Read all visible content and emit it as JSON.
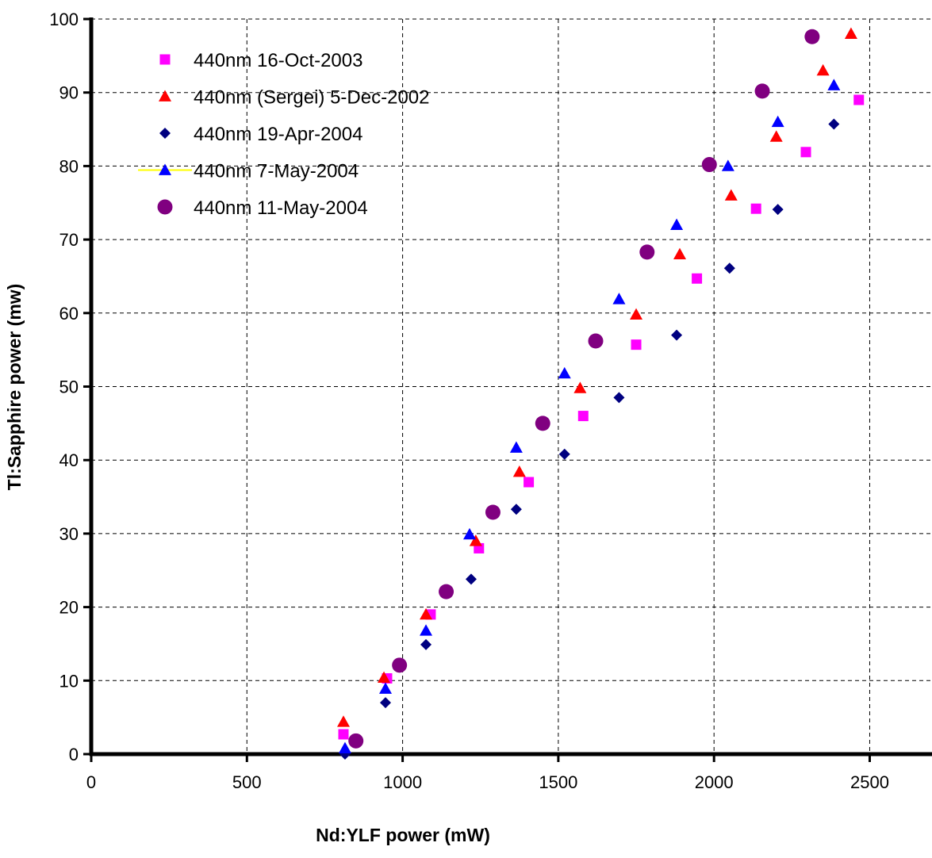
{
  "chart_data": {
    "type": "scatter",
    "title": "",
    "xlabel": "Nd:YLF power (mW)",
    "ylabel": "Tl:Sapphire power (mw)",
    "xlim": [
      0,
      2700
    ],
    "ylim": [
      0,
      100
    ],
    "x_ticks": [
      0,
      500,
      1000,
      1500,
      2000,
      2500
    ],
    "y_ticks": [
      0,
      10,
      20,
      30,
      40,
      50,
      60,
      70,
      80,
      90,
      100
    ],
    "grid": true,
    "legend_position": "top-left",
    "series": [
      {
        "name": "440nm 16-Oct-2003",
        "marker": "square",
        "color": "#ff00ff",
        "points": [
          [
            810,
            2.7
          ],
          [
            950,
            10.3
          ],
          [
            1090,
            19.0
          ],
          [
            1245,
            28.0
          ],
          [
            1405,
            37.0
          ],
          [
            1580,
            46.0
          ],
          [
            1750,
            55.7
          ],
          [
            1945,
            64.7
          ],
          [
            2135,
            74.2
          ],
          [
            2295,
            81.9
          ],
          [
            2465,
            89.0
          ]
        ]
      },
      {
        "name": "440nm (Sergei) 5-Dec-2002",
        "marker": "triangle",
        "color": "#ff0000",
        "points": [
          [
            810,
            4.4
          ],
          [
            940,
            10.4
          ],
          [
            1075,
            19.0
          ],
          [
            1235,
            29.0
          ],
          [
            1375,
            38.4
          ],
          [
            1570,
            49.8
          ],
          [
            1750,
            59.8
          ],
          [
            1890,
            68.0
          ],
          [
            2055,
            76.0
          ],
          [
            2200,
            84.0
          ],
          [
            2350,
            93.0
          ],
          [
            2440,
            98.0
          ]
        ]
      },
      {
        "name": "440nm 19-Apr-2004",
        "marker": "diamond",
        "color": "#000080",
        "points": [
          [
            815,
            0.0
          ],
          [
            945,
            7.0
          ],
          [
            1075,
            14.9
          ],
          [
            1220,
            23.8
          ],
          [
            1365,
            33.3
          ],
          [
            1520,
            40.8
          ],
          [
            1695,
            48.5
          ],
          [
            1880,
            57.0
          ],
          [
            2050,
            66.1
          ],
          [
            2205,
            74.1
          ],
          [
            2385,
            85.7
          ]
        ]
      },
      {
        "name": "440nm 7-May-2004",
        "marker": "triangle",
        "color": "#0000ff",
        "legend_line_color": "#ffff00",
        "points": [
          [
            815,
            0.8
          ],
          [
            945,
            8.9
          ],
          [
            1075,
            16.8
          ],
          [
            1215,
            29.9
          ],
          [
            1365,
            41.7
          ],
          [
            1520,
            51.8
          ],
          [
            1695,
            61.9
          ],
          [
            1880,
            72.0
          ],
          [
            2045,
            80.0
          ],
          [
            2205,
            86.0
          ],
          [
            2385,
            91.0
          ]
        ]
      },
      {
        "name": "440nm 11-May-2004",
        "marker": "circle",
        "color": "#800080",
        "points": [
          [
            850,
            1.8
          ],
          [
            990,
            12.1
          ],
          [
            1140,
            22.1
          ],
          [
            1290,
            32.9
          ],
          [
            1450,
            45.0
          ],
          [
            1620,
            56.2
          ],
          [
            1785,
            68.3
          ],
          [
            1985,
            80.2
          ],
          [
            2155,
            90.2
          ],
          [
            2315,
            97.6
          ]
        ]
      }
    ]
  }
}
